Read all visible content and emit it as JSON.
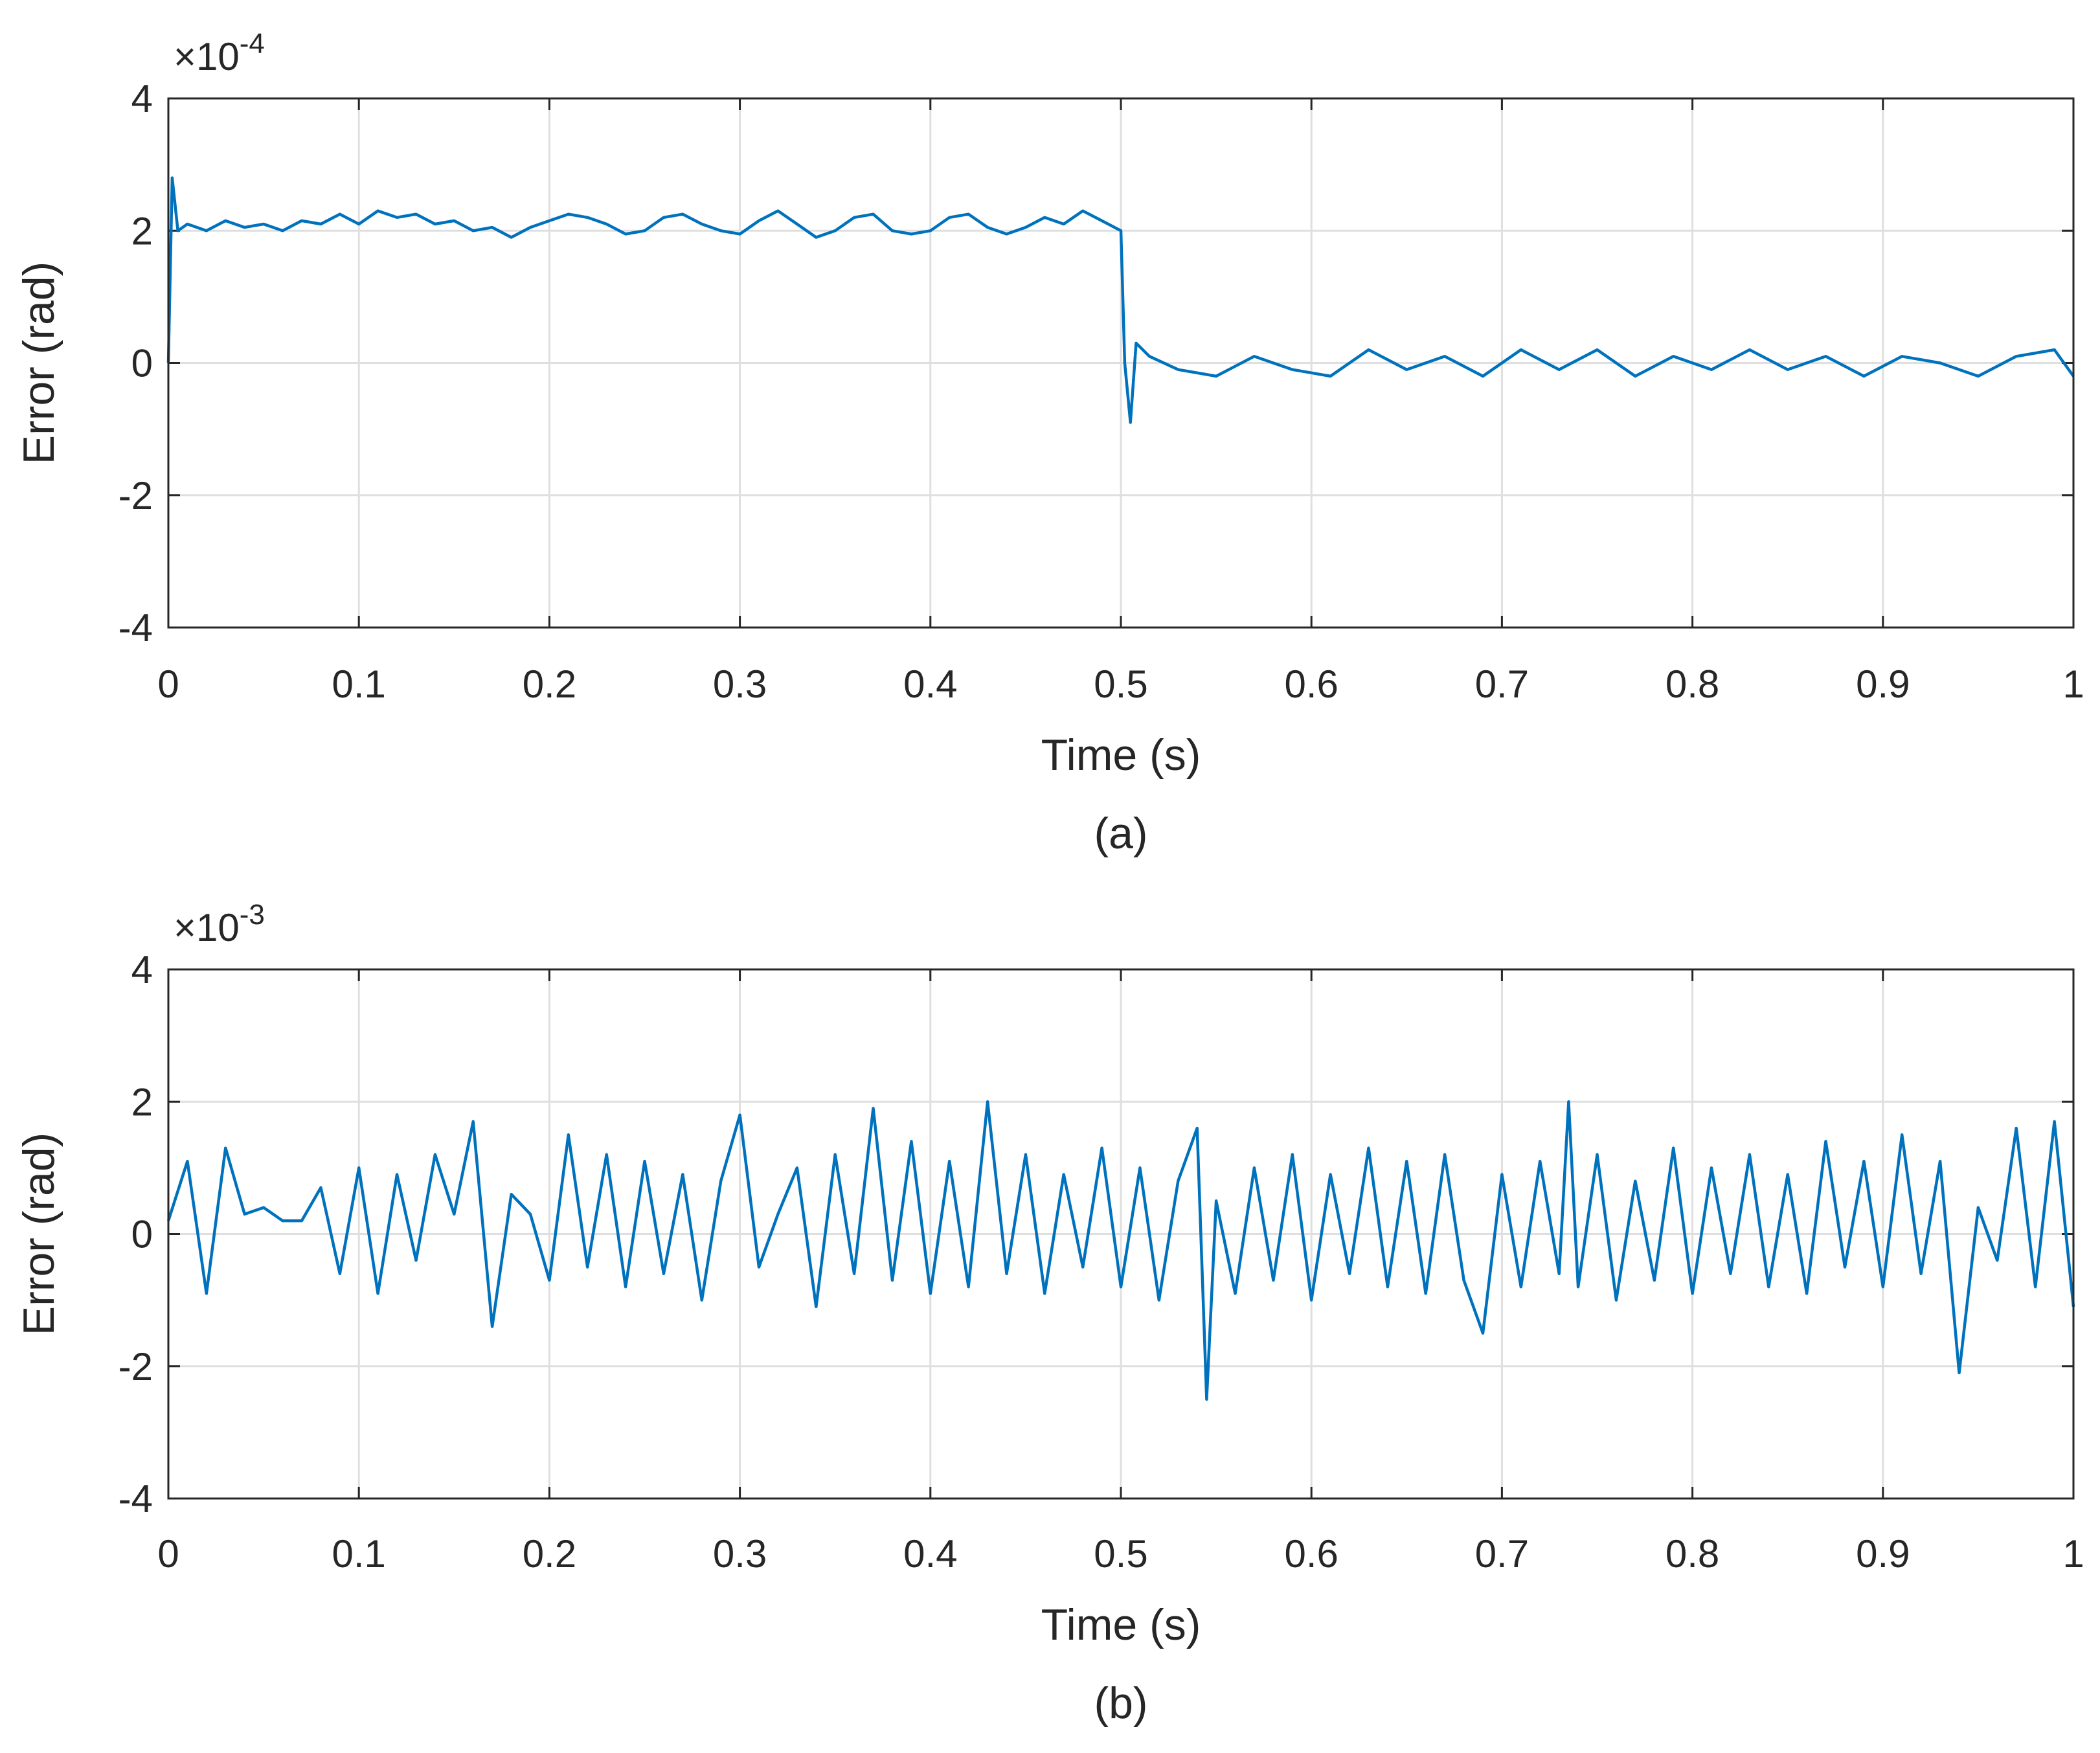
{
  "chart_data": [
    {
      "type": "line",
      "caption": "(a)",
      "xlabel": "Time (s)",
      "ylabel": "Error (rad)",
      "y_multiplier": {
        "base": "×10",
        "exponent": "-4"
      },
      "xlim": [
        0,
        1
      ],
      "xticks": [
        0,
        0.1,
        0.2,
        0.3,
        0.4,
        0.5,
        0.6,
        0.7,
        0.8,
        0.9,
        1
      ],
      "ylim": [
        -4,
        4
      ],
      "yticks": [
        -4,
        -2,
        0,
        2,
        4
      ],
      "grid": true,
      "x": [
        0,
        0.002,
        0.005,
        0.01,
        0.02,
        0.03,
        0.04,
        0.05,
        0.06,
        0.07,
        0.08,
        0.09,
        0.1,
        0.11,
        0.12,
        0.13,
        0.14,
        0.15,
        0.16,
        0.17,
        0.18,
        0.19,
        0.2,
        0.21,
        0.22,
        0.23,
        0.24,
        0.25,
        0.26,
        0.27,
        0.28,
        0.29,
        0.3,
        0.31,
        0.32,
        0.33,
        0.34,
        0.35,
        0.36,
        0.37,
        0.38,
        0.39,
        0.4,
        0.41,
        0.42,
        0.43,
        0.44,
        0.45,
        0.46,
        0.47,
        0.48,
        0.49,
        0.5,
        0.502,
        0.505,
        0.508,
        0.515,
        0.53,
        0.55,
        0.57,
        0.59,
        0.61,
        0.63,
        0.65,
        0.67,
        0.69,
        0.71,
        0.73,
        0.75,
        0.77,
        0.79,
        0.81,
        0.83,
        0.85,
        0.87,
        0.89,
        0.91,
        0.93,
        0.95,
        0.97,
        0.99,
        1
      ],
      "series": [
        {
          "name": "error",
          "color": "#0072bd",
          "values": [
            0,
            2.8,
            2.0,
            2.1,
            2.0,
            2.15,
            2.05,
            2.1,
            2.0,
            2.15,
            2.1,
            2.25,
            2.1,
            2.3,
            2.2,
            2.25,
            2.1,
            2.15,
            2.0,
            2.05,
            1.9,
            2.05,
            2.15,
            2.25,
            2.2,
            2.1,
            1.95,
            2.0,
            2.2,
            2.25,
            2.1,
            2.0,
            1.95,
            2.15,
            2.3,
            2.1,
            1.9,
            2.0,
            2.2,
            2.25,
            2.0,
            1.95,
            2.0,
            2.2,
            2.25,
            2.05,
            1.95,
            2.05,
            2.2,
            2.1,
            2.3,
            2.15,
            2.0,
            0.0,
            -0.9,
            0.3,
            0.1,
            -0.1,
            -0.2,
            0.1,
            -0.1,
            -0.2,
            0.2,
            -0.1,
            0.1,
            -0.2,
            0.2,
            -0.1,
            0.2,
            -0.2,
            0.1,
            -0.1,
            0.2,
            -0.1,
            0.1,
            -0.2,
            0.1,
            0.0,
            -0.2,
            0.1,
            0.2,
            -0.2
          ]
        }
      ]
    },
    {
      "type": "line",
      "caption": "(b)",
      "xlabel": "Time (s)",
      "ylabel": "Error (rad)",
      "y_multiplier": {
        "base": "×10",
        "exponent": "-3"
      },
      "xlim": [
        0,
        1
      ],
      "xticks": [
        0,
        0.1,
        0.2,
        0.3,
        0.4,
        0.5,
        0.6,
        0.7,
        0.8,
        0.9,
        1
      ],
      "ylim": [
        -4,
        4
      ],
      "yticks": [
        -4,
        -2,
        0,
        2,
        4
      ],
      "grid": true,
      "x": [
        0,
        0.01,
        0.02,
        0.03,
        0.04,
        0.05,
        0.06,
        0.07,
        0.08,
        0.09,
        0.1,
        0.11,
        0.12,
        0.13,
        0.14,
        0.15,
        0.16,
        0.17,
        0.18,
        0.19,
        0.2,
        0.21,
        0.22,
        0.23,
        0.24,
        0.25,
        0.26,
        0.27,
        0.28,
        0.29,
        0.3,
        0.31,
        0.32,
        0.33,
        0.34,
        0.35,
        0.36,
        0.37,
        0.38,
        0.39,
        0.4,
        0.41,
        0.42,
        0.43,
        0.44,
        0.45,
        0.46,
        0.47,
        0.48,
        0.49,
        0.5,
        0.51,
        0.52,
        0.53,
        0.54,
        0.545,
        0.55,
        0.56,
        0.57,
        0.58,
        0.59,
        0.6,
        0.61,
        0.62,
        0.63,
        0.64,
        0.65,
        0.66,
        0.67,
        0.68,
        0.69,
        0.7,
        0.71,
        0.72,
        0.73,
        0.735,
        0.74,
        0.75,
        0.76,
        0.77,
        0.78,
        0.79,
        0.8,
        0.81,
        0.82,
        0.83,
        0.84,
        0.85,
        0.86,
        0.87,
        0.88,
        0.89,
        0.9,
        0.91,
        0.92,
        0.93,
        0.94,
        0.95,
        0.96,
        0.97,
        0.98,
        0.99,
        1
      ],
      "series": [
        {
          "name": "error",
          "color": "#0072bd",
          "values": [
            0.2,
            1.1,
            -0.9,
            1.3,
            0.3,
            0.4,
            0.2,
            0.2,
            0.7,
            -0.6,
            1.0,
            -0.9,
            0.9,
            -0.4,
            1.2,
            0.3,
            1.7,
            -1.4,
            0.6,
            0.3,
            -0.7,
            1.5,
            -0.5,
            1.2,
            -0.8,
            1.1,
            -0.6,
            0.9,
            -1.0,
            0.8,
            1.8,
            -0.5,
            0.3,
            1.0,
            -1.1,
            1.2,
            -0.6,
            1.9,
            -0.7,
            1.4,
            -0.9,
            1.1,
            -0.8,
            2.0,
            -0.6,
            1.2,
            -0.9,
            0.9,
            -0.5,
            1.3,
            -0.8,
            1.0,
            -1.0,
            0.8,
            1.6,
            -2.5,
            0.5,
            -0.9,
            1.0,
            -0.7,
            1.2,
            -1.0,
            0.9,
            -0.6,
            1.3,
            -0.8,
            1.1,
            -0.9,
            1.2,
            -0.7,
            -1.5,
            0.9,
            -0.8,
            1.1,
            -0.6,
            2.0,
            -0.8,
            1.2,
            -1.0,
            0.8,
            -0.7,
            1.3,
            -0.9,
            1.0,
            -0.6,
            1.2,
            -0.8,
            0.9,
            -0.9,
            1.4,
            -0.5,
            1.1,
            -0.8,
            1.5,
            -0.6,
            1.1,
            -2.1,
            0.4,
            -0.4,
            1.6,
            -0.8,
            1.7,
            -1.1
          ]
        }
      ]
    }
  ]
}
